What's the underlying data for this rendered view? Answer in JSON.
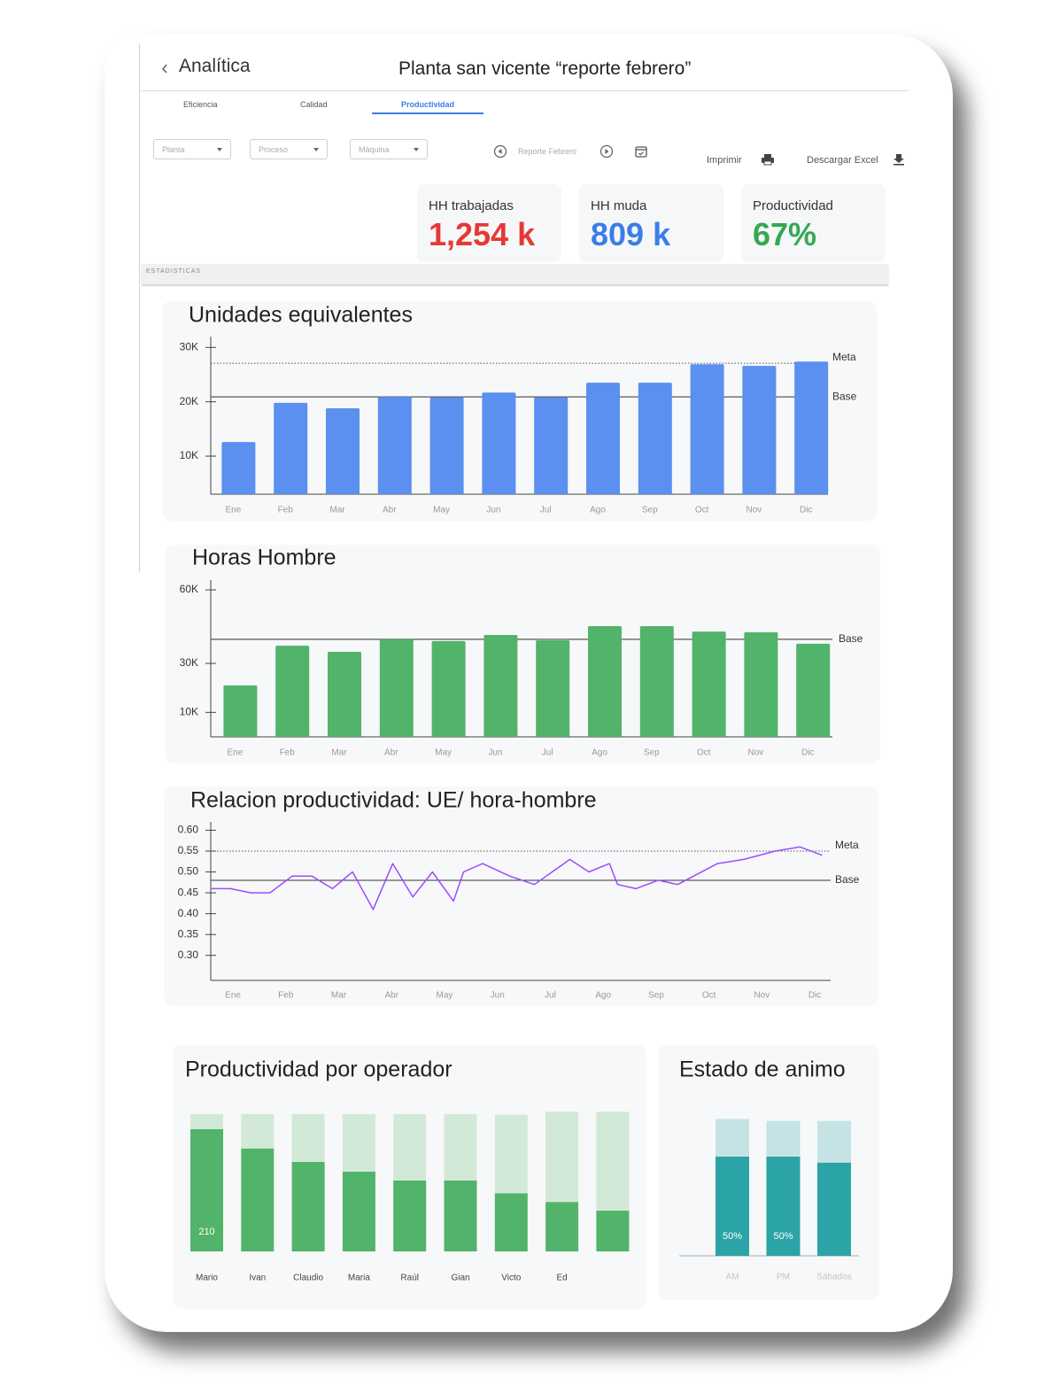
{
  "header": {
    "back": "Analítica",
    "title": "Planta san vicente “reporte febrero”"
  },
  "tabs": [
    "Eficiencia",
    "Calidad",
    "Productividad"
  ],
  "active_tab": 2,
  "filters": [
    "Planta",
    "Proceso",
    "Máquina"
  ],
  "report": "Reporte Febrero",
  "actions": [
    "Imprimir",
    "Descargar Excel"
  ],
  "kpis": [
    {
      "label": "HH trabajadas",
      "value": "1,254 k",
      "color": "#e53935"
    },
    {
      "label": "HH muda",
      "value": "809 k",
      "color": "#3b7de9"
    },
    {
      "label": "Productividad",
      "value": "67%",
      "color": "#34a853"
    }
  ],
  "section": "ESTADISTICAS",
  "chart_data": [
    {
      "type": "bar",
      "title": "Unidades equivalentes",
      "categories": [
        "Ene",
        "Feb",
        "Mar",
        "Abr",
        "May",
        "Jun",
        "Jul",
        "Ago",
        "Sep",
        "Oct",
        "Nov",
        "Dic"
      ],
      "values": [
        12600,
        19800,
        18800,
        20900,
        20800,
        21700,
        20800,
        23500,
        23500,
        26900,
        26600,
        27400
      ],
      "color": "#5b8ff0",
      "ylim": [
        3000,
        32000
      ],
      "yticks": [
        {
          "value": 10000,
          "label": "10K"
        },
        {
          "value": 20000,
          "label": "20K"
        },
        {
          "value": 30000,
          "label": "30K"
        }
      ],
      "reference_lines": [
        {
          "label": "Meta",
          "value": 27100,
          "style": "dotted"
        },
        {
          "label": "Base",
          "value": 20900,
          "style": "solid"
        }
      ]
    },
    {
      "type": "bar",
      "title": "Horas Hombre",
      "categories": [
        "Ene",
        "Feb",
        "Mar",
        "Abr",
        "May",
        "Jun",
        "Jul",
        "Ago",
        "Sep",
        "Oct",
        "Nov",
        "Dic"
      ],
      "values": [
        21000,
        37200,
        34700,
        39800,
        39100,
        41600,
        39400,
        45200,
        45200,
        43000,
        42700,
        38000
      ],
      "color": "#52b36a",
      "ylim": [
        0,
        64000
      ],
      "yticks": [
        {
          "value": 10000,
          "label": "10K"
        },
        {
          "value": 30000,
          "label": "30K"
        },
        {
          "value": 60000,
          "label": "60K"
        }
      ],
      "reference_lines": [
        {
          "label": "Base",
          "value": 39800,
          "style": "solid"
        }
      ]
    },
    {
      "type": "line",
      "title": "Relacion productividad: UE/ hora-hombre",
      "x": [
        0.58,
        0.95,
        1.34,
        1.7,
        2.12,
        2.49,
        2.88,
        3.26,
        3.65,
        4.02,
        4.4,
        4.77,
        5.17,
        5.36,
        5.72,
        6.23,
        6.7,
        7.37,
        7.73,
        8.12,
        8.27,
        8.62,
        9.04,
        9.41,
        10.16,
        10.66,
        11.25,
        11.72,
        12.14
      ],
      "values": [
        0.46,
        0.46,
        0.45,
        0.45,
        0.49,
        0.49,
        0.46,
        0.5,
        0.41,
        0.52,
        0.44,
        0.5,
        0.43,
        0.5,
        0.52,
        0.49,
        0.47,
        0.53,
        0.5,
        0.52,
        0.47,
        0.46,
        0.48,
        0.47,
        0.52,
        0.53,
        0.55,
        0.56,
        0.54
      ],
      "color": "#9b4dff",
      "xlim": [
        0.58,
        12.3
      ],
      "xticks": [
        {
          "value": 1,
          "label": "Ene"
        },
        {
          "value": 2,
          "label": "Feb"
        },
        {
          "value": 3,
          "label": "Mar"
        },
        {
          "value": 4,
          "label": "Abr"
        },
        {
          "value": 5,
          "label": "May"
        },
        {
          "value": 6,
          "label": "Jun"
        },
        {
          "value": 7,
          "label": "Jul"
        },
        {
          "value": 8,
          "label": "Ago"
        },
        {
          "value": 9,
          "label": "Sep"
        },
        {
          "value": 10,
          "label": "Oct"
        },
        {
          "value": 11,
          "label": "Nov"
        },
        {
          "value": 12,
          "label": "Dic"
        }
      ],
      "ylim": [
        0.24,
        0.62
      ],
      "yticks": [
        {
          "value": 0.3,
          "label": "0.30"
        },
        0.35,
        {
          "value": 0.4,
          "label": "0.40"
        },
        0.45,
        {
          "value": 0.5,
          "label": "0.50"
        },
        0.55,
        {
          "value": 0.6,
          "label": "0.60"
        }
      ],
      "reference_lines": [
        {
          "label": "Meta",
          "value": 0.55,
          "style": "dotted"
        },
        {
          "label": "Base",
          "value": 0.48,
          "style": "solid"
        }
      ]
    },
    {
      "type": "stacked_bar",
      "title": "Productividad por operador",
      "categories": [
        "Mario",
        "Ivan",
        "Claudio",
        "Maria",
        "Raúl",
        "Gian",
        "Victo",
        "Ed",
        null
      ],
      "series": [
        {
          "color": "#52b36a",
          "values": [
            210,
            177,
            154,
            137,
            122,
            122,
            100,
            85,
            70
          ],
          "value_labels": [
            "210",
            null,
            null,
            null,
            null,
            null,
            null,
            null,
            null
          ]
        },
        {
          "color": "#d3e9d7",
          "values": [
            26,
            59,
            82,
            99,
            114,
            114,
            135,
            155,
            170
          ]
        }
      ]
    },
    {
      "type": "stacked_bar",
      "title": "Estado de animo",
      "categories": [
        "AM",
        "PM",
        "Sábados"
      ],
      "baseline": true,
      "series": [
        {
          "color": "#2aa4a6",
          "values": [
            50,
            50,
            47
          ],
          "value_labels": [
            "50%",
            "50%",
            null
          ]
        },
        {
          "color": "#c5e3e4",
          "values": [
            19,
            18,
            21
          ]
        }
      ]
    }
  ]
}
